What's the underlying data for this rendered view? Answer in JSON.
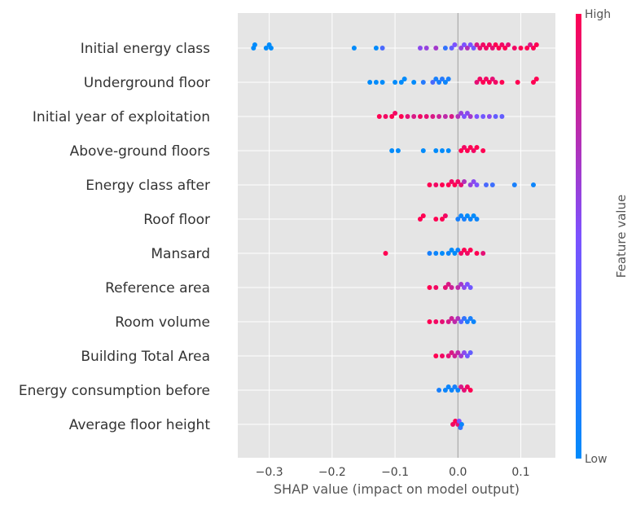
{
  "chart_data": {
    "type": "scatter",
    "subtype": "shap-beeswarm",
    "title": "",
    "xlabel": "SHAP value (impact on model output)",
    "xlim": [
      -0.35,
      0.155
    ],
    "xticks": [
      "−0.3",
      "−0.2",
      "−0.1",
      "0.0",
      "0.1"
    ],
    "xtick_values": [
      -0.3,
      -0.2,
      -0.1,
      0.0,
      0.1
    ],
    "grid": true,
    "colorbar": {
      "title": "Feature value",
      "high_label": "High",
      "low_label": "Low",
      "low_color": "#008bfb",
      "mid_color": "#7c52ff",
      "high_color": "#ff0052"
    },
    "plot_background": "#e5e5e5",
    "features": [
      {
        "name": "Initial energy class",
        "points": [
          [
            -0.325,
            0.0,
            0
          ],
          [
            -0.323,
            0.0,
            0
          ],
          [
            -0.305,
            0.0,
            0
          ],
          [
            -0.3,
            0.0,
            0
          ],
          [
            -0.297,
            0.0,
            0
          ],
          [
            -0.165,
            0.0,
            0
          ],
          [
            -0.13,
            0.0,
            0
          ],
          [
            -0.12,
            0.0,
            0.3
          ],
          [
            -0.06,
            0.0,
            0.55
          ],
          [
            -0.05,
            0.0,
            0.6
          ],
          [
            -0.035,
            0.0,
            0.65
          ],
          [
            -0.02,
            0.0,
            0.2
          ],
          [
            -0.01,
            0.0,
            0.4
          ],
          [
            -0.005,
            0.0,
            0.5
          ],
          [
            0.005,
            0.0,
            0.6
          ],
          [
            0.01,
            0.0,
            0.5
          ],
          [
            0.015,
            0.0,
            0.7
          ],
          [
            0.02,
            0.0,
            0.5
          ],
          [
            0.025,
            0.0,
            0.45
          ],
          [
            0.03,
            0.0,
            0.85
          ],
          [
            0.035,
            0.0,
            0.9
          ],
          [
            0.04,
            0.0,
            0.95
          ],
          [
            0.045,
            0.0,
            0.95
          ],
          [
            0.05,
            0.0,
            0.95
          ],
          [
            0.055,
            0.0,
            0.9
          ],
          [
            0.06,
            0.0,
            1.0
          ],
          [
            0.065,
            0.0,
            1.0
          ],
          [
            0.07,
            0.0,
            0.95
          ],
          [
            0.075,
            0.0,
            1.0
          ],
          [
            0.08,
            0.0,
            0.9
          ],
          [
            0.09,
            0.0,
            0.95
          ],
          [
            0.1,
            0.0,
            1.0
          ],
          [
            0.11,
            0.0,
            1.0
          ],
          [
            0.115,
            0.0,
            0.85
          ],
          [
            0.12,
            0.0,
            1.0
          ],
          [
            0.125,
            0.0,
            1.0
          ]
        ]
      },
      {
        "name": "Underground floor",
        "points": [
          [
            -0.14,
            0.0,
            0
          ],
          [
            -0.13,
            0.0,
            0
          ],
          [
            -0.12,
            0.0,
            0
          ],
          [
            -0.1,
            0.0,
            0
          ],
          [
            -0.09,
            0.0,
            0
          ],
          [
            -0.085,
            0.0,
            0
          ],
          [
            -0.07,
            0.0,
            0
          ],
          [
            -0.055,
            0.0,
            0.15
          ],
          [
            -0.04,
            0.0,
            0.3
          ],
          [
            -0.035,
            0.0,
            0.1
          ],
          [
            -0.03,
            0.0,
            0.1
          ],
          [
            -0.025,
            0.0,
            0.15
          ],
          [
            -0.02,
            0.0,
            0.05
          ],
          [
            -0.015,
            0.0,
            0.1
          ],
          [
            0.03,
            0.0,
            0.9
          ],
          [
            0.035,
            0.0,
            0.95
          ],
          [
            0.04,
            0.0,
            1.0
          ],
          [
            0.045,
            0.0,
            0.95
          ],
          [
            0.05,
            0.0,
            1.0
          ],
          [
            0.055,
            0.0,
            0.9
          ],
          [
            0.06,
            0.0,
            0.95
          ],
          [
            0.07,
            0.0,
            1.0
          ],
          [
            0.095,
            0.0,
            1.0
          ],
          [
            0.12,
            0.0,
            1.0
          ],
          [
            0.125,
            0.0,
            1.0
          ]
        ]
      },
      {
        "name": "Initial year of exploitation",
        "points": [
          [
            -0.125,
            0.0,
            1.0
          ],
          [
            -0.115,
            0.0,
            0.95
          ],
          [
            -0.105,
            0.0,
            1.0
          ],
          [
            -0.1,
            0.0,
            0.95
          ],
          [
            -0.09,
            0.0,
            1.0
          ],
          [
            -0.08,
            0.0,
            0.9
          ],
          [
            -0.07,
            0.0,
            0.85
          ],
          [
            -0.06,
            0.0,
            0.95
          ],
          [
            -0.05,
            0.0,
            0.9
          ],
          [
            -0.04,
            0.0,
            0.85
          ],
          [
            -0.03,
            0.0,
            0.8
          ],
          [
            -0.02,
            0.0,
            0.75
          ],
          [
            -0.01,
            0.0,
            0.85
          ],
          [
            0.0,
            0.0,
            0.7
          ],
          [
            0.005,
            0.0,
            0.6
          ],
          [
            0.01,
            0.0,
            0.5
          ],
          [
            0.015,
            0.0,
            0.55
          ],
          [
            0.02,
            0.0,
            0.65
          ],
          [
            0.03,
            0.0,
            0.5
          ],
          [
            0.04,
            0.0,
            0.45
          ],
          [
            0.05,
            0.0,
            0.55
          ],
          [
            0.06,
            0.0,
            0.4
          ],
          [
            0.07,
            0.0,
            0.4
          ]
        ]
      },
      {
        "name": "Above-ground floors",
        "points": [
          [
            -0.105,
            0.0,
            0
          ],
          [
            -0.095,
            0.0,
            0
          ],
          [
            -0.055,
            0.0,
            0
          ],
          [
            -0.035,
            0.0,
            0
          ],
          [
            -0.025,
            0.0,
            0
          ],
          [
            -0.015,
            0.0,
            0
          ],
          [
            0.005,
            0.0,
            1.0
          ],
          [
            0.01,
            0.0,
            0.95
          ],
          [
            0.015,
            0.0,
            1.0
          ],
          [
            0.02,
            0.0,
            1.0
          ],
          [
            0.025,
            0.0,
            0.95
          ],
          [
            0.03,
            0.0,
            1.0
          ],
          [
            0.04,
            0.0,
            1.0
          ]
        ]
      },
      {
        "name": "Energy class after",
        "points": [
          [
            -0.045,
            0.0,
            1.0
          ],
          [
            -0.035,
            0.0,
            0.95
          ],
          [
            -0.025,
            0.0,
            1.0
          ],
          [
            -0.015,
            0.0,
            1.0
          ],
          [
            -0.01,
            0.0,
            0.95
          ],
          [
            -0.005,
            0.0,
            1.0
          ],
          [
            0.0,
            0.0,
            0.95
          ],
          [
            0.005,
            0.0,
            0.9
          ],
          [
            0.01,
            0.0,
            0.7
          ],
          [
            0.02,
            0.0,
            0.6
          ],
          [
            0.025,
            0.0,
            0.55
          ],
          [
            0.03,
            0.0,
            0.5
          ],
          [
            0.045,
            0.0,
            0.3
          ],
          [
            0.055,
            0.0,
            0.25
          ],
          [
            0.09,
            0.0,
            0.1
          ],
          [
            0.12,
            0.0,
            0.05
          ]
        ]
      },
      {
        "name": "Roof floor",
        "points": [
          [
            -0.06,
            0.0,
            1.0
          ],
          [
            -0.055,
            0.0,
            1.0
          ],
          [
            -0.035,
            0.0,
            1.0
          ],
          [
            -0.025,
            0.0,
            1.0
          ],
          [
            -0.02,
            0.0,
            0.95
          ],
          [
            0.0,
            0.0,
            0.1
          ],
          [
            0.005,
            0.0,
            0.05
          ],
          [
            0.01,
            0.0,
            0.1
          ],
          [
            0.015,
            0.0,
            0.0
          ],
          [
            0.02,
            0.0,
            0.05
          ],
          [
            0.025,
            0.0,
            0.0
          ],
          [
            0.03,
            0.0,
            0.05
          ]
        ]
      },
      {
        "name": "Mansard",
        "points": [
          [
            -0.115,
            0.0,
            1.0
          ],
          [
            -0.045,
            0.0,
            0.1
          ],
          [
            -0.035,
            0.0,
            0.05
          ],
          [
            -0.025,
            0.0,
            0.0
          ],
          [
            -0.015,
            0.0,
            0.05
          ],
          [
            -0.01,
            0.0,
            0.0
          ],
          [
            -0.005,
            0.0,
            0.0
          ],
          [
            0.0,
            0.0,
            0.05
          ],
          [
            0.005,
            0.0,
            0.95
          ],
          [
            0.01,
            0.0,
            1.0
          ],
          [
            0.015,
            0.0,
            0.95
          ],
          [
            0.02,
            0.0,
            1.0
          ],
          [
            0.03,
            0.0,
            1.0
          ],
          [
            0.04,
            0.0,
            0.9
          ]
        ]
      },
      {
        "name": "Reference area",
        "points": [
          [
            -0.045,
            0.0,
            1.0
          ],
          [
            -0.035,
            0.0,
            0.95
          ],
          [
            -0.02,
            0.0,
            0.9
          ],
          [
            -0.015,
            0.0,
            0.85
          ],
          [
            -0.01,
            0.0,
            0.8
          ],
          [
            0.0,
            0.0,
            0.75
          ],
          [
            0.005,
            0.0,
            0.65
          ],
          [
            0.01,
            0.0,
            0.55
          ],
          [
            0.015,
            0.0,
            0.5
          ],
          [
            0.02,
            0.0,
            0.45
          ]
        ]
      },
      {
        "name": "Room volume",
        "points": [
          [
            -0.045,
            0.0,
            1.0
          ],
          [
            -0.035,
            0.0,
            0.95
          ],
          [
            -0.025,
            0.0,
            0.9
          ],
          [
            -0.015,
            0.0,
            0.85
          ],
          [
            -0.01,
            0.0,
            0.8
          ],
          [
            -0.005,
            0.0,
            0.75
          ],
          [
            0.0,
            0.0,
            0.7
          ],
          [
            0.005,
            0.0,
            0.35
          ],
          [
            0.01,
            0.0,
            0.2
          ],
          [
            0.015,
            0.0,
            0.1
          ],
          [
            0.02,
            0.0,
            0.1
          ],
          [
            0.025,
            0.0,
            0.05
          ]
        ]
      },
      {
        "name": "Building Total Area",
        "points": [
          [
            -0.035,
            0.0,
            1.0
          ],
          [
            -0.025,
            0.0,
            0.95
          ],
          [
            -0.015,
            0.0,
            0.9
          ],
          [
            -0.01,
            0.0,
            0.85
          ],
          [
            -0.005,
            0.0,
            0.8
          ],
          [
            0.0,
            0.0,
            0.75
          ],
          [
            0.005,
            0.0,
            0.65
          ],
          [
            0.01,
            0.0,
            0.55
          ],
          [
            0.015,
            0.0,
            0.45
          ],
          [
            0.02,
            0.0,
            0.4
          ]
        ]
      },
      {
        "name": "Energy consumption before",
        "points": [
          [
            -0.03,
            0.0,
            0.1
          ],
          [
            -0.02,
            0.0,
            0.05
          ],
          [
            -0.015,
            0.0,
            0.05
          ],
          [
            -0.01,
            0.0,
            0.05
          ],
          [
            -0.005,
            0.0,
            0.1
          ],
          [
            0.0,
            0.0,
            0.05
          ],
          [
            0.005,
            0.0,
            0.85
          ],
          [
            0.01,
            0.0,
            0.9
          ],
          [
            0.015,
            0.0,
            0.95
          ],
          [
            0.02,
            0.0,
            1.0
          ]
        ]
      },
      {
        "name": "Average floor height",
        "points": [
          [
            -0.008,
            0.0,
            0.95
          ],
          [
            -0.004,
            0.0,
            1.0
          ],
          [
            0.0,
            0.0,
            0.9
          ],
          [
            0.002,
            0.0,
            0.5
          ],
          [
            0.004,
            0.0,
            0.2
          ],
          [
            0.006,
            0.0,
            0.05
          ]
        ]
      }
    ]
  }
}
